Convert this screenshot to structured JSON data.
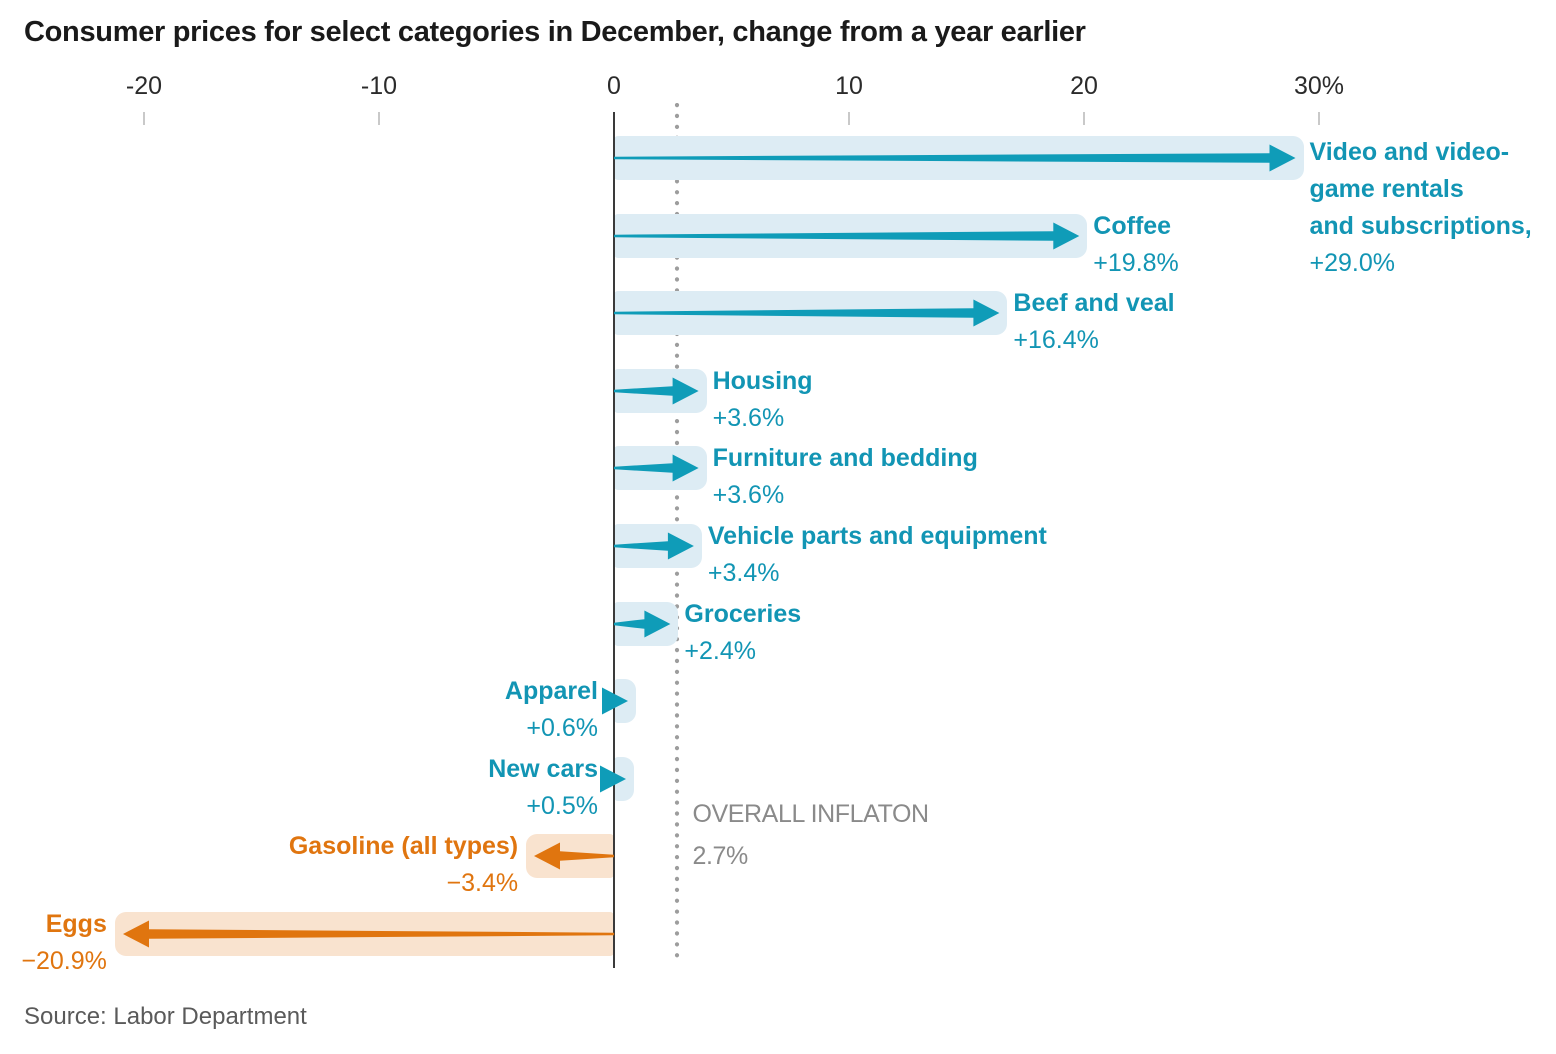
{
  "chart_data": {
    "type": "bar",
    "variant": "horizontal-arrow-bars",
    "title": "Consumer prices for select categories in December, change from a year earlier",
    "source": "Source: Labor Department",
    "x_axis": {
      "unit": "percent change year over year",
      "range": [
        -25,
        40
      ],
      "ticks": [
        {
          "value": -20,
          "label": "-20"
        },
        {
          "value": -10,
          "label": "-10"
        },
        {
          "value": 0,
          "label": "0"
        },
        {
          "value": 10,
          "label": "10"
        },
        {
          "value": 20,
          "label": "20"
        },
        {
          "value": 30,
          "label": "30%"
        }
      ]
    },
    "reference_line": {
      "value": 2.7,
      "label": "OVERALL INFLATON",
      "value_label": "2.7%"
    },
    "categories": [
      {
        "label_lines": [
          "Video and video-",
          "game rentals",
          "and subscriptions,"
        ],
        "value": 29.0,
        "value_label": "+29.0%",
        "label_side": "right"
      },
      {
        "label_lines": [
          "Coffee"
        ],
        "value": 19.8,
        "value_label": "+19.8%",
        "label_side": "right"
      },
      {
        "label_lines": [
          "Beef and veal"
        ],
        "value": 16.4,
        "value_label": "+16.4%",
        "label_side": "right"
      },
      {
        "label_lines": [
          "Housing"
        ],
        "value": 3.6,
        "value_label": "+3.6%",
        "label_side": "right"
      },
      {
        "label_lines": [
          "Furniture and bedding"
        ],
        "value": 3.6,
        "value_label": "+3.6%",
        "label_side": "right"
      },
      {
        "label_lines": [
          "Vehicle parts and equipment"
        ],
        "value": 3.4,
        "value_label": "+3.4%",
        "label_side": "right"
      },
      {
        "label_lines": [
          "Groceries"
        ],
        "value": 2.4,
        "value_label": "+2.4%",
        "label_side": "right"
      },
      {
        "label_lines": [
          "Apparel"
        ],
        "value": 0.6,
        "value_label": "+0.6%",
        "label_side": "left-of-axis"
      },
      {
        "label_lines": [
          "New cars"
        ],
        "value": 0.5,
        "value_label": "+0.5%",
        "label_side": "left-of-axis"
      },
      {
        "label_lines": [
          "Gasoline (all types)"
        ],
        "value": -3.4,
        "value_label": "−3.4%",
        "label_side": "left-of-bar"
      },
      {
        "label_lines": [
          "Eggs"
        ],
        "value": -20.9,
        "value_label": "−20.9%",
        "label_side": "left-of-bar"
      }
    ],
    "colors": {
      "positive_arrow": "#0f9cb8",
      "positive_bg": "#ddecf4",
      "positive_text": "#1295b4",
      "negative_arrow": "#e0750f",
      "negative_bg": "#f9e3cf",
      "negative_text": "#e0750f",
      "reference_text": "#8a8a8a",
      "axis_line": "#3a3a3a",
      "tick_text": "#2b2b2b",
      "tick_mark": "#c9c9c9",
      "dotted_line": "#9d9d9d",
      "title_text": "#1a1a1a",
      "source_text": "#5a5a5a"
    }
  }
}
